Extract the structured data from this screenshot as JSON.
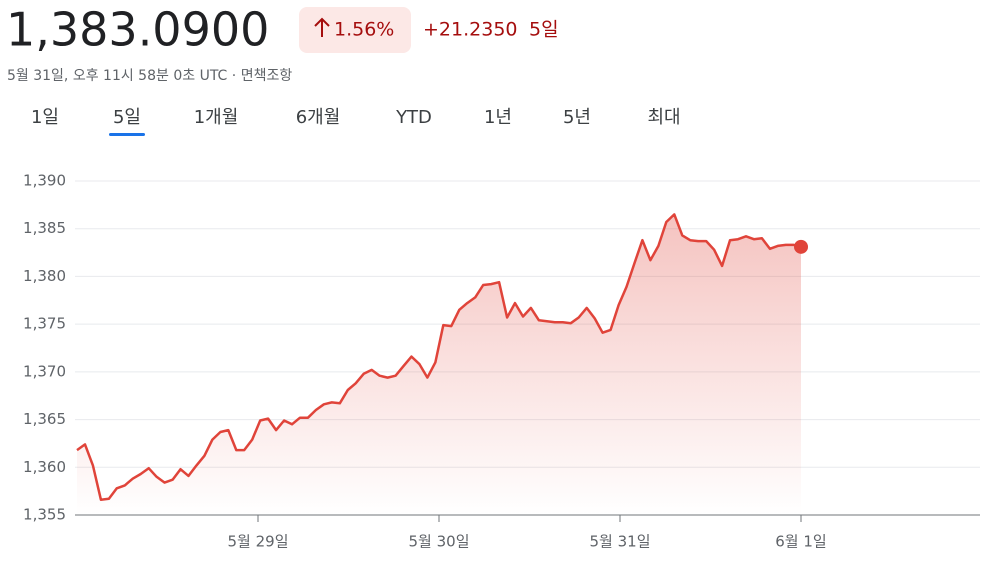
{
  "header": {
    "price": "1,383.0900",
    "change_percent": "1.56%",
    "change": "+21.2350",
    "period": "5일",
    "timestamp": "5월 31일, 오후 11시 58분 0초 UTC",
    "separator": "·",
    "disclaimer": "면책조항"
  },
  "tabs": [
    "1일",
    "5일",
    "1개월",
    "6개월",
    "YTD",
    "1년",
    "5년",
    "최대"
  ],
  "selected_tab": 1,
  "chart_data": {
    "type": "line",
    "x": [
      0,
      0.044,
      0.088,
      0.132,
      0.176,
      0.22,
      0.264,
      0.308,
      0.352,
      0.396,
      0.44,
      0.484,
      0.528,
      0.572,
      0.616,
      0.66,
      0.704,
      0.748,
      0.792,
      0.836,
      0.88,
      0.924,
      0.968,
      1.012,
      1.056,
      1.1,
      1.144,
      1.188,
      1.232,
      1.276,
      1.32,
      1.364,
      1.408,
      1.452,
      1.496,
      1.54,
      1.584,
      1.628,
      1.672,
      1.716,
      1.76,
      1.804,
      1.848,
      1.892,
      1.936,
      1.98,
      2.024,
      2.068,
      2.112,
      2.156,
      2.2,
      2.244,
      2.288,
      2.332,
      2.376,
      2.42,
      2.464,
      2.508,
      2.552,
      2.596,
      2.64,
      2.684,
      2.728,
      2.772,
      2.816,
      2.86,
      2.904,
      2.948,
      2.992,
      3.036,
      3.08,
      3.124,
      3.168,
      3.212,
      3.256,
      3.3,
      3.344,
      3.388,
      3.432,
      3.476,
      3.52,
      3.564,
      3.608,
      3.652,
      3.696,
      3.74,
      3.784,
      3.828,
      3.872,
      3.916,
      3.96,
      4.0
    ],
    "series": [
      {
        "color": "#e0443a",
        "values": [
          1361.8,
          1362.4,
          1360.2,
          1356.6,
          1356.7,
          1357.8,
          1358.1,
          1358.8,
          1359.3,
          1359.9,
          1359.0,
          1358.4,
          1358.7,
          1359.8,
          1359.1,
          1360.2,
          1361.2,
          1362.9,
          1363.7,
          1363.9,
          1361.8,
          1361.8,
          1362.9,
          1364.9,
          1365.1,
          1363.9,
          1364.9,
          1364.5,
          1365.2,
          1365.2,
          1366.0,
          1366.6,
          1366.8,
          1366.7,
          1368.1,
          1368.8,
          1369.8,
          1370.2,
          1369.6,
          1369.4,
          1369.6,
          1370.6,
          1371.6,
          1370.8,
          1369.4,
          1371.0,
          1374.9,
          1374.8,
          1376.5,
          1377.2,
          1377.8,
          1379.1,
          1379.2,
          1379.4,
          1375.7,
          1377.2,
          1375.8,
          1376.7,
          1375.4,
          1375.3,
          1375.2,
          1375.2,
          1375.1,
          1375.7,
          1376.7,
          1375.6,
          1374.1,
          1374.4,
          1377.0,
          1378.9,
          1381.4,
          1383.8,
          1381.7,
          1383.2,
          1385.7,
          1386.5,
          1384.3,
          1383.8,
          1383.7,
          1383.7,
          1382.8,
          1381.1,
          1383.8,
          1383.9,
          1384.2,
          1383.9,
          1384.0,
          1382.9,
          1383.2,
          1383.3,
          1383.3,
          1383.1
        ]
      }
    ],
    "xlim": [
      0,
      5
    ],
    "xticks": [
      {
        "value": 1,
        "label": "5월 29일"
      },
      {
        "value": 2,
        "label": "5월 30일"
      },
      {
        "value": 3,
        "label": "5월 31일"
      },
      {
        "value": 4,
        "label": "6월 1일"
      }
    ],
    "ylim": [
      1355,
      1390
    ],
    "yticks": [
      {
        "value": 1355,
        "label": "1,355"
      },
      {
        "value": 1360,
        "label": "1,360"
      },
      {
        "value": 1365,
        "label": "1,365"
      },
      {
        "value": 1370,
        "label": "1,370"
      },
      {
        "value": 1375,
        "label": "1,375"
      },
      {
        "value": 1380,
        "label": "1,380"
      },
      {
        "value": 1385,
        "label": "1,385"
      },
      {
        "value": 1390,
        "label": "1,390"
      }
    ],
    "grid": true
  }
}
